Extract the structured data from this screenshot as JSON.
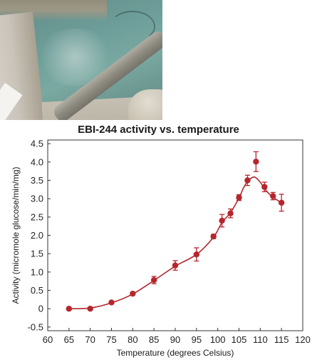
{
  "photo": {
    "subject": "hot-spring-pool-photo"
  },
  "chart_data": {
    "type": "scatter",
    "title": "EBI-244 activity vs. temperature",
    "xlabel": "Temperature (degrees Celsius)",
    "ylabel": "Activity (micromole glucose/min/mg)",
    "xlim": [
      60,
      120
    ],
    "ylim": [
      -0.6,
      4.6
    ],
    "xticks": [
      "60",
      "65",
      "70",
      "75",
      "80",
      "85",
      "90",
      "95",
      "100",
      "105",
      "110",
      "115",
      "120"
    ],
    "yticks": [
      "-0.5",
      "0",
      "0.5",
      "1.0",
      "1.5",
      "2.0",
      "2.5",
      "3.0",
      "3.5",
      "4.0",
      "4.5"
    ],
    "grid": false,
    "color": "#b5262d",
    "series": [
      {
        "x": [
          65,
          70,
          75,
          80,
          85,
          90,
          95,
          99,
          101,
          103,
          105,
          107,
          109,
          111,
          113,
          115
        ],
        "y": [
          0.0,
          0.0,
          0.17,
          0.41,
          0.78,
          1.18,
          1.48,
          1.97,
          2.4,
          2.6,
          3.03,
          3.5,
          4.01,
          3.32,
          3.07,
          2.89
        ],
        "err": [
          0,
          0,
          0,
          0,
          0.1,
          0.13,
          0.18,
          0.06,
          0.17,
          0.12,
          0.08,
          0.14,
          0.27,
          0.13,
          0.1,
          0.23
        ]
      }
    ],
    "fit": {
      "x": [
        65,
        70,
        75,
        80,
        85,
        90,
        95,
        99,
        101,
        103,
        105,
        106,
        107,
        108,
        108.5,
        109,
        110,
        111,
        112,
        113,
        114,
        115
      ],
      "y": [
        0.0,
        0.02,
        0.16,
        0.4,
        0.77,
        1.16,
        1.48,
        1.95,
        2.35,
        2.62,
        3.02,
        3.28,
        3.47,
        3.57,
        3.59,
        3.57,
        3.45,
        3.28,
        3.14,
        3.04,
        2.96,
        2.89
      ]
    }
  }
}
